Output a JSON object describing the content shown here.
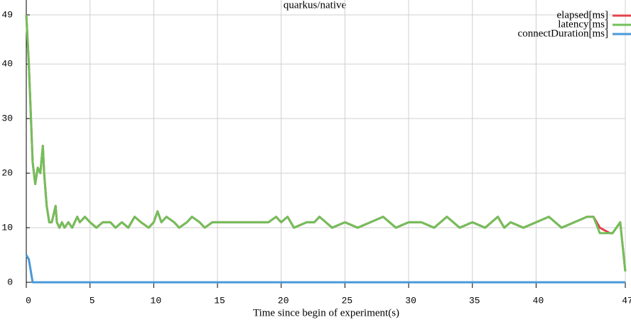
{
  "chart_data": {
    "type": "line",
    "title": "quarkus/native",
    "x_label": "Time since begin of experiment(s)",
    "x": [
      0,
      0.2,
      0.5,
      0.7,
      0.9,
      1.1,
      1.3,
      1.4,
      1.6,
      1.8,
      2.0,
      2.3,
      2.4,
      2.6,
      2.8,
      3.0,
      3.3,
      3.6,
      4.0,
      4.2,
      4.6,
      5.0,
      5.5,
      6,
      6.6,
      7,
      7.5,
      8,
      8.5,
      9,
      9.6,
      10,
      10.3,
      10.6,
      11,
      11.6,
      12,
      12.6,
      13,
      13.6,
      14,
      14.6,
      15,
      16,
      17,
      18,
      19,
      19.6,
      20,
      20.5,
      21,
      22,
      22.6,
      23,
      23.5,
      24,
      25,
      26,
      27,
      28,
      29,
      30,
      31,
      32,
      33,
      34,
      35,
      36,
      37,
      37.5,
      38,
      39,
      40,
      41,
      42,
      43,
      44,
      44.5,
      45,
      45.8,
      46,
      46.6,
      47
    ],
    "series": [
      {
        "name": "elapsed[ms]",
        "color": "#e5424d",
        "values": [
          49,
          40,
          22,
          18,
          21,
          20,
          25,
          20,
          14,
          11,
          11,
          14,
          11,
          10,
          11,
          10,
          11,
          10,
          12,
          11,
          12,
          11,
          10,
          11,
          11,
          10,
          11,
          10,
          12,
          11,
          10,
          11,
          13,
          11,
          12,
          11,
          10,
          11,
          12,
          11,
          10,
          11,
          11,
          11,
          11,
          11,
          11,
          12,
          11,
          12,
          10,
          11,
          11,
          12,
          11,
          10,
          11,
          10,
          11,
          12,
          10,
          11,
          11,
          10,
          12,
          10,
          11,
          10,
          12,
          10,
          11,
          10,
          11,
          12,
          10,
          11,
          12,
          12,
          10,
          9,
          9,
          11,
          2
        ]
      },
      {
        "name": "latency[ms]",
        "color": "#72bf5a",
        "values": [
          49,
          40,
          22,
          18,
          21,
          20,
          25,
          20,
          14,
          11,
          11,
          14,
          11,
          10,
          11,
          10,
          11,
          10,
          12,
          11,
          12,
          11,
          10,
          11,
          11,
          10,
          11,
          10,
          12,
          11,
          10,
          11,
          13,
          11,
          12,
          11,
          10,
          11,
          12,
          11,
          10,
          11,
          11,
          11,
          11,
          11,
          11,
          12,
          11,
          12,
          10,
          11,
          11,
          12,
          11,
          10,
          11,
          10,
          11,
          12,
          10,
          11,
          11,
          10,
          12,
          10,
          11,
          10,
          12,
          10,
          11,
          10,
          11,
          12,
          10,
          11,
          12,
          12,
          9,
          9,
          9,
          11,
          2
        ]
      },
      {
        "name": "connectDuration[ms]",
        "color": "#4a98d8",
        "values": [
          5,
          4.2,
          0,
          0,
          0,
          0,
          0,
          0,
          0,
          0,
          0,
          0,
          0,
          0,
          0,
          0,
          0,
          0,
          0,
          0,
          0,
          0,
          0,
          0,
          0,
          0,
          0,
          0,
          0,
          0,
          0,
          0,
          0,
          0,
          0,
          0,
          0,
          0,
          0,
          0,
          0,
          0,
          0,
          0,
          0,
          0,
          0,
          0,
          0,
          0,
          0,
          0,
          0,
          0,
          0,
          0,
          0,
          0,
          0,
          0,
          0,
          0,
          0,
          0,
          0,
          0,
          0,
          0,
          0,
          0,
          0,
          0,
          0,
          0,
          0,
          0,
          0,
          0,
          0,
          0,
          0,
          0,
          0
        ]
      }
    ],
    "xlim": [
      0,
      47
    ],
    "xticks": [
      0,
      5,
      10,
      15,
      20,
      25,
      30,
      35,
      40,
      47
    ],
    "ylim": [
      0,
      49
    ],
    "yticks": [
      0,
      10,
      20,
      30,
      40,
      49
    ],
    "grid": true,
    "legend": "top-right"
  }
}
